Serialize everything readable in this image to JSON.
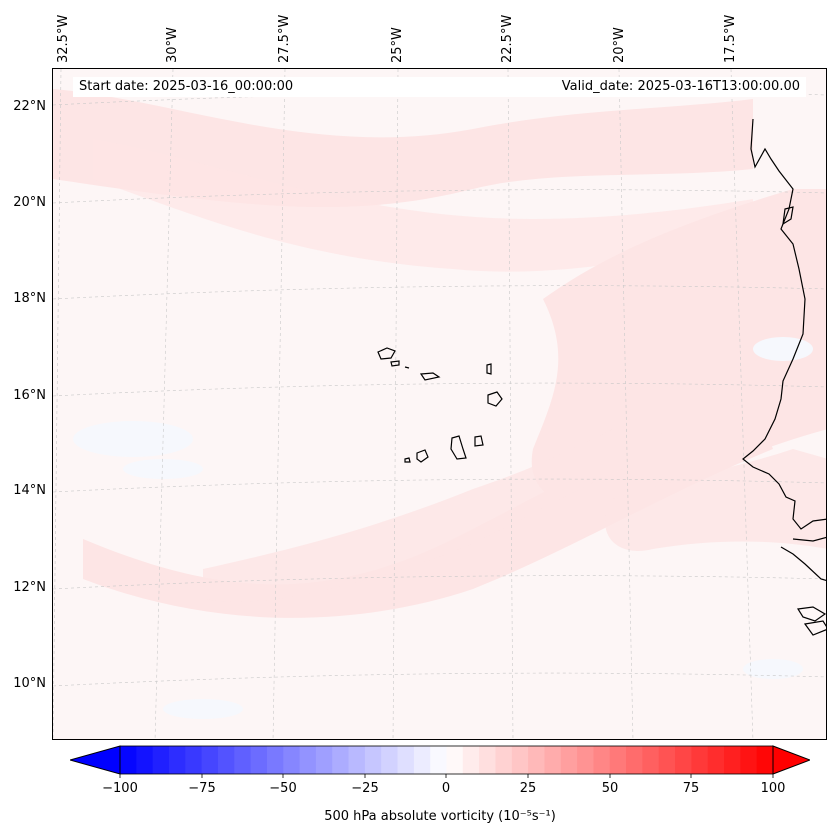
{
  "map": {
    "start_label": "Start date: 2025-03-16_00:00:00",
    "valid_label": "Valid_date: 2025-03-16T13:00:00.00",
    "lon_labels": [
      "32.5°W",
      "30°W",
      "27.5°W",
      "25°W",
      "22.5°W",
      "20°W",
      "17.5°W"
    ],
    "lat_labels": [
      "22°N",
      "20°N",
      "18°N",
      "16°N",
      "14°N",
      "12°N",
      "10°N"
    ],
    "gridlines": "dashed",
    "coastline_color": "#000000",
    "field_colors": {
      "background": "#fdf6f6",
      "light_red": "#fde4e4",
      "light_blue": "#f3f6fd"
    }
  },
  "colorbar": {
    "ticks": [
      "−100",
      "−75",
      "−50",
      "−25",
      "0",
      "25",
      "50",
      "75",
      "100"
    ],
    "min": -100,
    "max": 100,
    "color_low": "#0000ff",
    "color_mid": "#ffffff",
    "color_high": "#ff0000",
    "label": "500 hPa absolute vorticity (10⁻⁵s⁻¹)"
  }
}
